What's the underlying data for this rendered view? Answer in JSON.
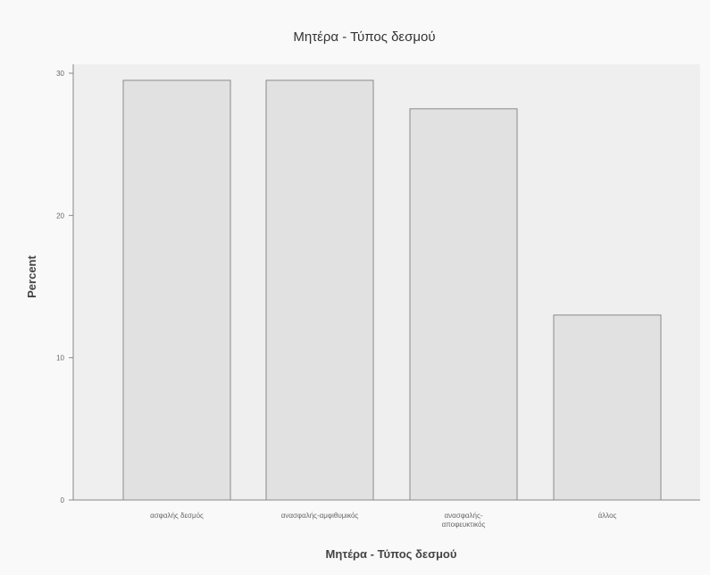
{
  "chart_data": {
    "type": "bar",
    "title": "Μητέρα - Τύπος δεσμού",
    "xlabel": "Μητέρα - Τύπος δεσμού",
    "ylabel": "Percent",
    "categories": [
      "ασφαλής δεσμός",
      "ανασφαλής-αμφιθυμικός",
      "ανασφαλής-αποφευκτικός",
      "άλλος"
    ],
    "values": [
      29.5,
      29.5,
      27.5,
      13
    ],
    "ylim": [
      0,
      30
    ],
    "yticks": [
      0,
      10,
      20,
      30
    ],
    "ytick_labels": [
      "0",
      "10",
      "20",
      "30"
    ],
    "grid": false,
    "legend": "none",
    "colors": {
      "bar_fill": "#e1e1e1",
      "bar_stroke": "#8a8a8a",
      "plot_bg": "#efefef",
      "axis": "#888888"
    }
  }
}
